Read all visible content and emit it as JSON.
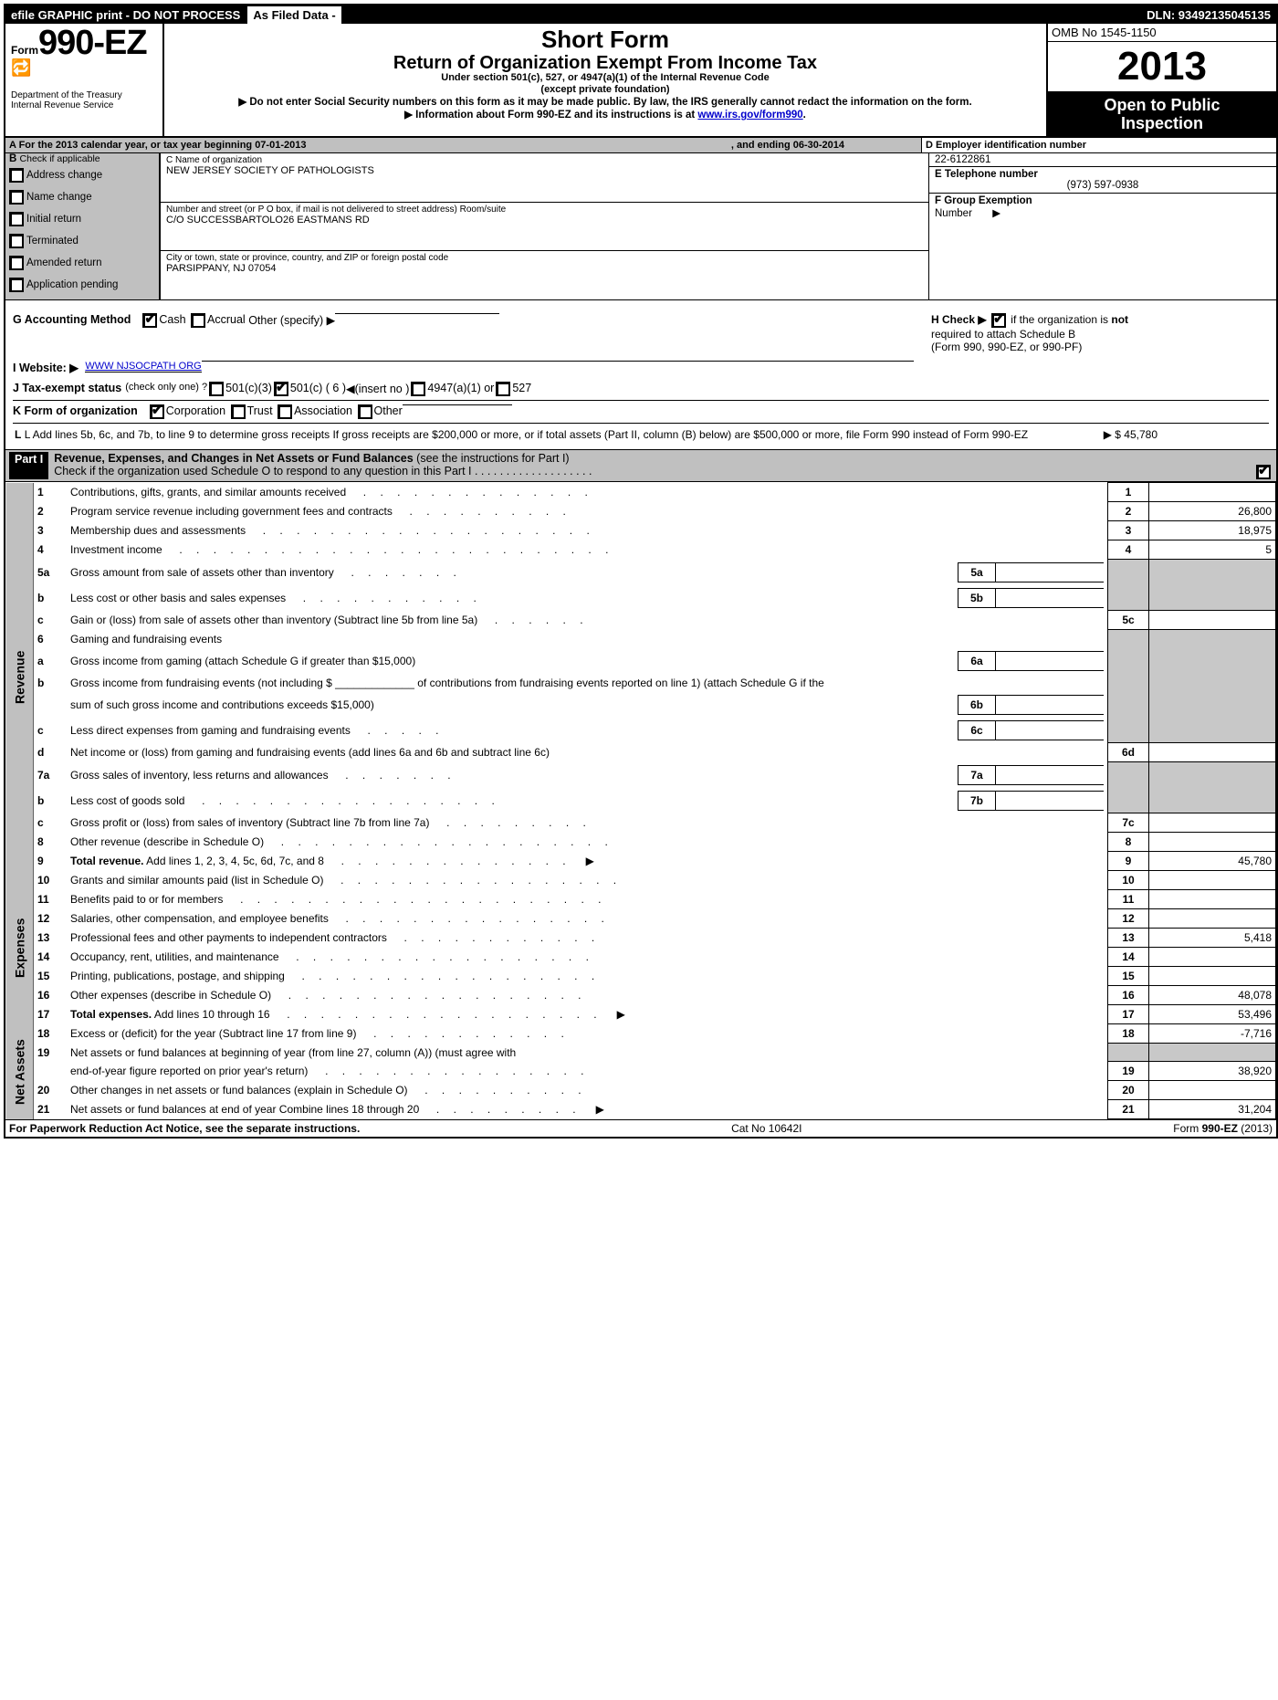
{
  "topbar": {
    "left": "efile GRAPHIC print - DO NOT PROCESS",
    "mid": "As Filed Data -",
    "dln": "DLN: 93492135045135"
  },
  "header": {
    "form_prefix": "Form",
    "form_number": "990-EZ",
    "title": "Short Form",
    "subtitle": "Return of Organization Exempt From Income Tax",
    "under": "Under section 501(c), 527, or 4947(a)(1) of the Internal Revenue Code",
    "except": "(except private foundation)",
    "note1": "▶ Do not enter Social Security numbers on this form as it may be made public. By law, the IRS generally cannot redact the information on the form.",
    "note2_pre": "▶ Information about Form 990-EZ and its instructions is at ",
    "note2_link": "www.irs.gov/form990",
    "dept1": "Department of the Treasury",
    "dept2": "Internal Revenue Service",
    "omb": "OMB No 1545-1150",
    "year": "2013",
    "inspection1": "Open to Public",
    "inspection2": "Inspection"
  },
  "rowA": {
    "text": "A  For the 2013 calendar year, or tax year beginning 07-01-2013",
    "end": ", and ending 06-30-2014",
    "d_label": "D Employer identification number"
  },
  "sectionB": {
    "header": "B",
    "header_txt": "Check if applicable",
    "opts": [
      "Address change",
      "Name change",
      "Initial return",
      "Terminated",
      "Amended return",
      "Application pending"
    ]
  },
  "sectionC": {
    "name_hint": "C Name of organization",
    "name": "NEW JERSEY SOCIETY OF PATHOLOGISTS",
    "addr_hint": "Number and street (or P O box, if mail is not delivered to street address) Room/suite",
    "addr": "C/O SUCCESSBARTOLO26 EASTMANS RD",
    "city_hint": "City or town, state or province, country, and ZIP or foreign postal code",
    "city": "PARSIPPANY, NJ 07054"
  },
  "rightCol": {
    "ein": "22-6122861",
    "e_label": "E Telephone number",
    "phone": "(973) 597-0938",
    "f_label": "F Group Exemption",
    "f_label2": "Number",
    "f_arrow": "▶"
  },
  "rowG": {
    "label": "G Accounting Method",
    "cash": "Cash",
    "accrual": "Accrual",
    "other": "Other (specify) ▶"
  },
  "rowH": {
    "pre": "H  Check ▶",
    "post": "if the organization is",
    "not": "not",
    "line2": "required to attach Schedule B",
    "line3": "(Form 990, 990-EZ, or 990-PF)"
  },
  "rowI": {
    "label": "I Website: ▶",
    "val": "WWW NJSOCPATH ORG"
  },
  "rowJ": {
    "label": "J Tax-exempt status",
    "txt": "(check only one) ?",
    "o1": "501(c)(3)",
    "o2": "501(c) ( 6 )",
    "insert": "◀(insert no )",
    "o3": "4947(a)(1) or",
    "o4": "527"
  },
  "rowK": {
    "label": "K Form of organization",
    "o1": "Corporation",
    "o2": "Trust",
    "o3": "Association",
    "o4": "Other"
  },
  "rowL": {
    "text": "L Add lines 5b, 6c, and 7b, to line 9 to determine gross receipts  If gross receipts are $200,000 or more, or if total assets (Part II, column (B) below) are $500,000 or more, file Form 990 instead of Form 990-EZ",
    "amount": "▶ $ 45,780"
  },
  "partI": {
    "tag": "Part I",
    "title": "Revenue, Expenses, and Changes in Net Assets or Fund Balances",
    "sub": "(see the instructions for Part I)",
    "check_line": "Check if the organization used Schedule O to respond to any question in this Part I  .  .  .  .  .  .  .  .  .  .  .  .  .  .  .  .  .  .  ."
  },
  "sections": {
    "revenue": "Revenue",
    "expenses": "Expenses",
    "netassets": "Net Assets"
  },
  "lines": [
    {
      "n": "1",
      "desc": "Contributions, gifts, grants, and similar amounts received",
      "dots": 14,
      "rnum": "1",
      "rval": ""
    },
    {
      "n": "2",
      "desc": "Program service revenue including government fees and contracts",
      "dots": 10,
      "rnum": "2",
      "rval": "26,800"
    },
    {
      "n": "3",
      "desc": "Membership dues and assessments",
      "dots": 20,
      "rnum": "3",
      "rval": "18,975"
    },
    {
      "n": "4",
      "desc": "Investment income",
      "dots": 26,
      "rnum": "4",
      "rval": "5"
    },
    {
      "n": "5a",
      "desc": "Gross amount from sale of assets other than inventory",
      "dots": 7,
      "inlabel": "5a",
      "grey": true
    },
    {
      "n": "b",
      "desc": "Less cost or other basis and sales expenses",
      "dots": 11,
      "inlabel": "5b",
      "grey": true
    },
    {
      "n": "c",
      "desc": "Gain or (loss) from sale of assets other than inventory (Subtract line 5b from line 5a)",
      "dots": 6,
      "rnum": "5c",
      "rval": ""
    },
    {
      "n": "6",
      "desc": "Gaming and fundraising events",
      "grey": true
    },
    {
      "n": "a",
      "desc": "Gross income from gaming (attach Schedule G if greater than $15,000)",
      "inlabel": "6a",
      "dotpre": ".",
      "grey": true
    },
    {
      "n": "b",
      "desc": "Gross income from fundraising events (not including $ _____________ of contributions from fundraising events reported on line 1) (attach Schedule G if the",
      "grey": true,
      "multi": true
    },
    {
      "n": "",
      "desc": "sum of such gross income and contributions exceeds $15,000)",
      "inlabel": "6b",
      "grey": true
    },
    {
      "n": "c",
      "desc": "Less  direct expenses from gaming and fundraising events",
      "dots": 5,
      "inlabel": "6c",
      "grey": true
    },
    {
      "n": "d",
      "desc": "Net income or (loss) from gaming and fundraising events (add lines 6a and 6b and subtract line 6c)",
      "rnum": "6d",
      "rval": ""
    },
    {
      "n": "7a",
      "desc": "Gross sales of inventory, less returns and allowances",
      "dots": 7,
      "inlabel": "7a",
      "grey": true
    },
    {
      "n": "b",
      "desc": "Less  cost of goods sold",
      "dots": 18,
      "inlabel": "7b",
      "grey": true
    },
    {
      "n": "c",
      "desc": "Gross profit or (loss) from sales of inventory (Subtract line 7b from line 7a)",
      "dots": 9,
      "rnum": "7c",
      "rval": ""
    },
    {
      "n": "8",
      "desc": "Other revenue (describe in Schedule O)",
      "dots": 20,
      "rnum": "8",
      "rval": ""
    },
    {
      "n": "9",
      "desc": "Total revenue. Add lines 1, 2, 3, 4, 5c, 6d, 7c, and 8",
      "dots": 14,
      "rnum": "9",
      "rval": "45,780",
      "bold": true,
      "arrow": true
    }
  ],
  "expenses": [
    {
      "n": "10",
      "desc": "Grants and similar amounts paid (list in Schedule O)",
      "dots": 17,
      "rnum": "10",
      "rval": ""
    },
    {
      "n": "11",
      "desc": "Benefits paid to or for members",
      "dots": 22,
      "rnum": "11",
      "rval": ""
    },
    {
      "n": "12",
      "desc": "Salaries, other compensation, and employee benefits",
      "dots": 16,
      "rnum": "12",
      "rval": ""
    },
    {
      "n": "13",
      "desc": "Professional fees and other payments to independent contractors",
      "dots": 12,
      "rnum": "13",
      "rval": "5,418"
    },
    {
      "n": "14",
      "desc": "Occupancy, rent, utilities, and maintenance",
      "dots": 18,
      "rnum": "14",
      "rval": ""
    },
    {
      "n": "15",
      "desc": "Printing, publications, postage, and shipping",
      "dots": 18,
      "rnum": "15",
      "rval": ""
    },
    {
      "n": "16",
      "desc": "Other expenses (describe in Schedule O)",
      "dots": 18,
      "rnum": "16",
      "rval": "48,078"
    },
    {
      "n": "17",
      "desc": "Total expenses. Add lines 10 through 16",
      "dots": 19,
      "rnum": "17",
      "rval": "53,496",
      "bold": true,
      "arrow": true
    }
  ],
  "netassets": [
    {
      "n": "18",
      "desc": "Excess or (deficit) for the year (Subtract line 17 from line 9)",
      "dots": 12,
      "rnum": "18",
      "rval": "-7,716"
    },
    {
      "n": "19",
      "desc": "Net assets or fund balances at beginning of year (from line 27, column (A)) (must agree with",
      "grey": true,
      "multi": true
    },
    {
      "n": "",
      "desc": "end-of-year figure reported on prior year's return)",
      "dots": 16,
      "rnum": "19",
      "rval": "38,920"
    },
    {
      "n": "20",
      "desc": "Other changes in net assets or fund balances (explain in Schedule O)",
      "dots": 10,
      "rnum": "20",
      "rval": ""
    },
    {
      "n": "21",
      "desc": "Net assets or fund balances at end of year Combine lines 18 through 20",
      "dots": 9,
      "rnum": "21",
      "rval": "31,204",
      "arrow": true
    }
  ],
  "footer": {
    "left": "For Paperwork Reduction Act Notice, see the separate instructions.",
    "mid": "Cat No 10642I",
    "right_pre": "Form ",
    "right_bold": "990-EZ",
    "right_post": " (2013)"
  }
}
